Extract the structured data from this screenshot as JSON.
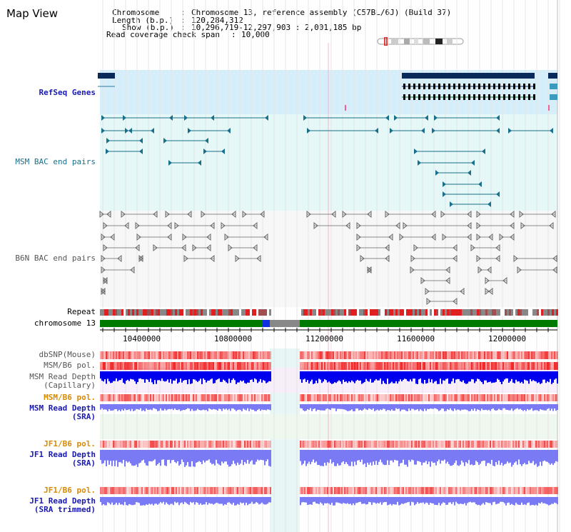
{
  "title": "Map View",
  "info": {
    "chromosome_key": "Chromosome",
    "chromosome_val": "Chromosome 13, reference assembly (C57BL/6J) (Build 37)",
    "length_key": "Length (b.p.)",
    "length_val": "120,284,312",
    "show_key": "Show (b.p.)",
    "show_val": "10,296,719-12,297,903 : 2,001,185 bp",
    "coverage_key": "Read coverage check span",
    "coverage_val": "10,000"
  },
  "tracks": {
    "refseq": "RefSeq Genes",
    "msm_bac": "MSM BAC end pairs",
    "b6n_bac": "B6N BAC end pairs",
    "repeat": "Repeat",
    "chromosome": "chromosome 13",
    "dbsnp": "dbSNP(Mouse)",
    "msm_b6_pol": "MSM/B6 pol.",
    "msm_read_depth_cap_1": "MSM Read Depth",
    "msm_read_depth_cap_2": "(Capillary)",
    "msm_b6_pol_sra": "MSM/B6 pol.",
    "msm_read_depth_sra_1": "MSM Read Depth",
    "msm_read_depth_sra_2": "(SRA)",
    "jf1_b6_pol": "JF1/B6 pol.",
    "jf1_read_depth_1": "JF1 Read Depth",
    "jf1_read_depth_2": "(SRA)",
    "jf1_b6_pol_trim": "JF1/B6 pol.",
    "jf1_read_depth_trim_1": "JF1 Read Depth",
    "jf1_read_depth_trim_2": "(SRA trimmed)"
  },
  "axis": {
    "ticks": [
      "10400000",
      "10800000",
      "11200000",
      "11600000",
      "12000000"
    ]
  },
  "colors": {
    "refseq_bg": "#d6eefa",
    "msm_bg": "#e6f7f7",
    "b6n_bg": "#f7f7f7",
    "gene": "#0a2a5a",
    "msm_feature": "#1a6f8a",
    "b6n_feature": "#666666",
    "chrom_band": "#007a00",
    "depth_capillary": "#0000ee",
    "depth_sra": "#7a7af5",
    "snp": "#f06060"
  }
}
